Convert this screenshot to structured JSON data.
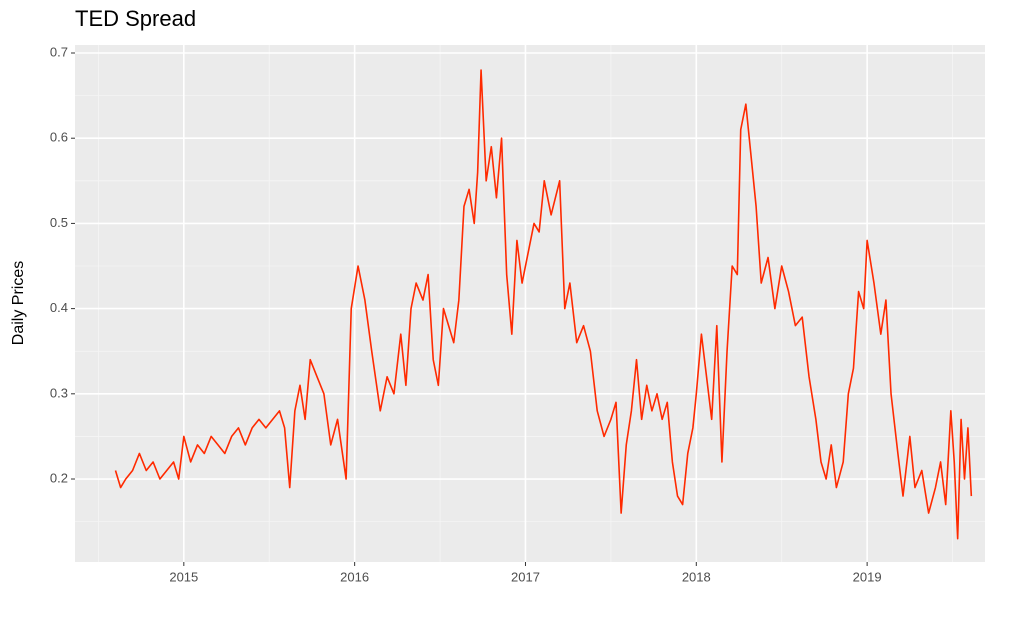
{
  "chart_data": {
    "type": "line",
    "title": "TED Spread",
    "y_label": "Daily Prices",
    "x": [
      2014.6,
      2014.63,
      2014.66,
      2014.7,
      2014.74,
      2014.78,
      2014.82,
      2014.86,
      2014.9,
      2014.94,
      2014.97,
      2015.0,
      2015.04,
      2015.08,
      2015.12,
      2015.16,
      2015.2,
      2015.24,
      2015.28,
      2015.32,
      2015.36,
      2015.4,
      2015.44,
      2015.48,
      2015.52,
      2015.56,
      2015.59,
      2015.62,
      2015.65,
      2015.68,
      2015.71,
      2015.74,
      2015.78,
      2015.82,
      2015.86,
      2015.9,
      2015.95,
      2015.98,
      2016.02,
      2016.06,
      2016.1,
      2016.15,
      2016.19,
      2016.23,
      2016.27,
      2016.3,
      2016.33,
      2016.36,
      2016.4,
      2016.43,
      2016.46,
      2016.49,
      2016.52,
      2016.55,
      2016.58,
      2016.61,
      2016.64,
      2016.67,
      2016.7,
      2016.72,
      2016.74,
      2016.77,
      2016.8,
      2016.83,
      2016.86,
      2016.89,
      2016.92,
      2016.95,
      2016.98,
      2017.02,
      2017.05,
      2017.08,
      2017.11,
      2017.15,
      2017.2,
      2017.23,
      2017.26,
      2017.3,
      2017.34,
      2017.38,
      2017.42,
      2017.46,
      2017.5,
      2017.53,
      2017.56,
      2017.59,
      2017.62,
      2017.65,
      2017.68,
      2017.71,
      2017.74,
      2017.77,
      2017.8,
      2017.83,
      2017.86,
      2017.89,
      2017.92,
      2017.95,
      2017.98,
      2018.0,
      2018.03,
      2018.06,
      2018.09,
      2018.12,
      2018.15,
      2018.18,
      2018.21,
      2018.24,
      2018.26,
      2018.29,
      2018.32,
      2018.35,
      2018.38,
      2018.42,
      2018.46,
      2018.5,
      2018.54,
      2018.58,
      2018.62,
      2018.66,
      2018.7,
      2018.73,
      2018.76,
      2018.79,
      2018.82,
      2018.86,
      2018.89,
      2018.92,
      2018.95,
      2018.98,
      2019.0,
      2019.04,
      2019.08,
      2019.11,
      2019.14,
      2019.18,
      2019.21,
      2019.25,
      2019.28,
      2019.32,
      2019.36,
      2019.4,
      2019.43,
      2019.46,
      2019.49,
      2019.51,
      2019.53,
      2019.55,
      2019.57,
      2019.59,
      2019.61
    ],
    "series": [
      {
        "color": "#ff2a00",
        "values": [
          0.21,
          0.19,
          0.2,
          0.21,
          0.23,
          0.21,
          0.22,
          0.2,
          0.21,
          0.22,
          0.2,
          0.25,
          0.22,
          0.24,
          0.23,
          0.25,
          0.24,
          0.23,
          0.25,
          0.26,
          0.24,
          0.26,
          0.27,
          0.26,
          0.27,
          0.28,
          0.26,
          0.19,
          0.28,
          0.31,
          0.27,
          0.34,
          0.32,
          0.3,
          0.24,
          0.27,
          0.2,
          0.4,
          0.45,
          0.41,
          0.35,
          0.28,
          0.32,
          0.3,
          0.37,
          0.31,
          0.4,
          0.43,
          0.41,
          0.44,
          0.34,
          0.31,
          0.4,
          0.38,
          0.36,
          0.41,
          0.52,
          0.54,
          0.5,
          0.56,
          0.68,
          0.55,
          0.59,
          0.53,
          0.6,
          0.44,
          0.37,
          0.48,
          0.43,
          0.47,
          0.5,
          0.49,
          0.55,
          0.51,
          0.55,
          0.4,
          0.43,
          0.36,
          0.38,
          0.35,
          0.28,
          0.25,
          0.27,
          0.29,
          0.16,
          0.24,
          0.28,
          0.34,
          0.27,
          0.31,
          0.28,
          0.3,
          0.27,
          0.29,
          0.22,
          0.18,
          0.17,
          0.23,
          0.26,
          0.3,
          0.37,
          0.32,
          0.27,
          0.38,
          0.22,
          0.35,
          0.45,
          0.44,
          0.61,
          0.64,
          0.58,
          0.52,
          0.43,
          0.46,
          0.4,
          0.45,
          0.42,
          0.38,
          0.39,
          0.32,
          0.27,
          0.22,
          0.2,
          0.24,
          0.19,
          0.22,
          0.3,
          0.33,
          0.42,
          0.4,
          0.48,
          0.43,
          0.37,
          0.41,
          0.3,
          0.23,
          0.18,
          0.25,
          0.19,
          0.21,
          0.16,
          0.19,
          0.22,
          0.17,
          0.28,
          0.22,
          0.13,
          0.27,
          0.2,
          0.26,
          0.18
        ]
      }
    ],
    "xlim": [
      2014.363,
      2019.69
    ],
    "xticks": [
      2015,
      2016,
      2017,
      2018,
      2019
    ],
    "ylim": [
      0.1026,
      0.7094
    ],
    "yticks": [
      0.2,
      0.3,
      0.4,
      0.5,
      0.6,
      0.7
    ],
    "grid": true
  }
}
